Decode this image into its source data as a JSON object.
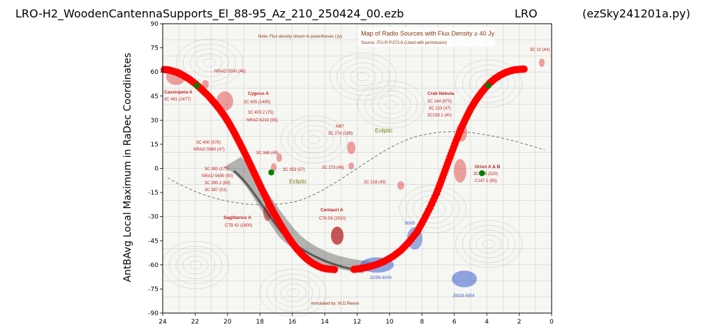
{
  "title": {
    "file": "LRO-H2_WoodenCantennaSupports_El_88-95_Az_210_250424_00.ezb",
    "site": "LRO",
    "program": "(ezSky241201a.py)"
  },
  "background_map": {
    "heading": "Map of Radio Sources with Flux Density ≥ 40 Jy",
    "note": "Note: Flux density shown in parentheses (Jy)",
    "source": "Source: ITU-R P.372-8 (Used with permission)",
    "annotation": "Annotated by: W.D.Reeve",
    "ecliptic_label": "Ecliptic",
    "source_labels": {
      "cassiopeia_name": "Cassiopeia A",
      "cassiopeia_flux": "3C 461 (2477)",
      "nrao5500": "NRAO 5500 (46)",
      "cygnus_name": "Cygnus A",
      "cygnus_1": "3C 405 (1495)",
      "cygnus_2": "3C 403.2 (75)",
      "cygnus_3": "NRAO 6210 (55)",
      "c400_1": "3C 400 (576)",
      "c400_2": "NRAO 5980 (47)",
      "c392_1": "3C 392 (171)",
      "c392_2": "NRAO 5690 (90)",
      "c392_3": "3C 390.2 (80)",
      "c392_4": "3C 387  (51)",
      "c348": "3C 348 (45)",
      "c353": "3C 353 (57)",
      "c273": "3C 273 (46)",
      "m87_name": "M87",
      "m87_flux": "3C 274 (198)",
      "c218": "3C 218 (43)",
      "sagittarius_name": "Sagittarius A",
      "sagittarius_flux": "CTB 42 (1800)",
      "centauri_name": "Centauri A",
      "centauri_flux": "CTA 59 (2010)",
      "crab_name": "Crab Nebula",
      "crab_1": "3C 144 (875)",
      "crab_2": "3C 123 (47)",
      "crab_3": "3C139.1 (40)",
      "orion_name": "Orion A & B",
      "orion_1": "3C 145 (520)",
      "orion_2": "C147.1 (65)",
      "c10": "3C 10 (44)",
      "j1056": "J1056-6006",
      "b083": "B083",
      "j0538": "J0538-6904"
    }
  },
  "chart_data": {
    "type": "scatter",
    "title": "LRO-H2_WoodenCantennaSupports_El_88-95_Az_210_250424_00.ezb",
    "xlabel": "",
    "ylabel": "AntBAvg Local Maximum in RaDec Coordinates",
    "xlim": [
      24,
      0
    ],
    "ylim": [
      -90,
      90
    ],
    "x_ticks": [
      24,
      22,
      20,
      18,
      16,
      14,
      12,
      10,
      8,
      6,
      4,
      2,
      0
    ],
    "y_ticks": [
      90,
      75,
      60,
      45,
      30,
      15,
      0,
      -15,
      -30,
      -45,
      -60,
      -75,
      -90
    ],
    "grid": false,
    "series": [
      {
        "color": "#ff0000",
        "marker": "circle",
        "x": [
          23.9,
          23.6,
          23.2,
          22.8,
          22.4,
          22.0,
          21.6,
          21.2,
          20.8,
          20.5,
          20.2,
          19.9,
          19.6,
          19.3,
          19.0,
          18.7,
          18.4,
          18.1,
          17.8,
          17.5,
          17.2,
          16.9,
          16.6,
          16.3,
          16.0,
          15.7,
          15.4,
          15.1,
          14.8,
          14.5,
          14.2,
          13.9,
          13.4,
          12.2,
          11.8,
          11.3,
          10.8,
          10.3,
          9.8,
          9.3,
          8.8,
          8.3,
          7.9,
          7.5,
          7.1,
          6.8,
          6.5,
          6.2,
          5.9,
          5.6,
          5.3,
          5.0,
          4.7,
          4.4,
          4.1,
          3.8,
          3.5,
          3.2,
          2.9,
          2.6,
          2.3,
          2.0,
          1.7
        ],
        "y": [
          61.5,
          61.2,
          60.0,
          58.2,
          55.8,
          52.8,
          49.2,
          45.3,
          40.7,
          37.0,
          32.8,
          28.0,
          22.6,
          16.8,
          10.9,
          4.6,
          -1.8,
          -8.2,
          -14.6,
          -20.8,
          -26.7,
          -32.0,
          -37.2,
          -42.0,
          -46.4,
          -50.3,
          -53.6,
          -56.4,
          -58.7,
          -60.4,
          -61.7,
          -62.5,
          -62.9,
          -62.8,
          -62.3,
          -61.3,
          -59.8,
          -57.7,
          -54.8,
          -51.0,
          -45.8,
          -39.5,
          -32.2,
          -24.3,
          -15.5,
          -7.5,
          0.8,
          9.0,
          17.0,
          24.5,
          31.0,
          37.0,
          42.0,
          46.2,
          50.0,
          53.2,
          55.8,
          57.8,
          59.4,
          60.5,
          61.3,
          61.6,
          61.8
        ]
      },
      {
        "color": "#008000",
        "marker": "circle",
        "x": [
          21.9,
          17.3,
          4.3,
          3.9
        ],
        "y": [
          51.5,
          -2.5,
          -3.0,
          51.5
        ]
      }
    ]
  }
}
